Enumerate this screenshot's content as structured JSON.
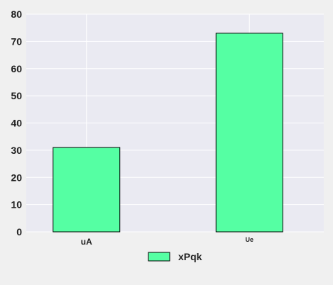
{
  "chart_data": {
    "type": "bar",
    "categories": [
      "uA",
      "Ue"
    ],
    "series": [
      {
        "name": "xPqk",
        "values": [
          31,
          73
        ]
      }
    ],
    "ylim": [
      0,
      80
    ],
    "yticks": [
      0,
      10,
      20,
      30,
      40,
      50,
      60,
      70,
      80
    ],
    "grid": true,
    "legend": "bottom-center",
    "colors": {
      "bar": "#55ffa3",
      "bar_edge": "#000000",
      "plot_background": "#eaeaf2",
      "grid": "#ffffff",
      "page_background": "#f0f0f0"
    }
  }
}
